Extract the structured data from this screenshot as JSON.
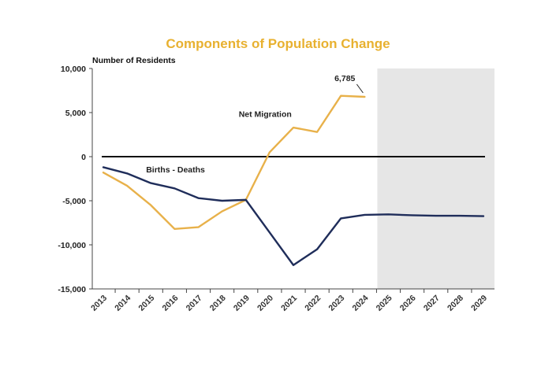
{
  "chart_data": {
    "type": "line",
    "title": "Components of Population Change",
    "ylabel": "Number of Residents",
    "xlabel": "",
    "x": [
      2013,
      2014,
      2015,
      2016,
      2017,
      2018,
      2019,
      2020,
      2021,
      2022,
      2023,
      2024,
      2025,
      2026,
      2027,
      2028,
      2029
    ],
    "x_tick_labels": [
      "2013",
      "2014",
      "2015",
      "2016",
      "2017",
      "2018",
      "2019",
      "2020",
      "2021",
      "2022",
      "2023",
      "2024",
      "2025",
      "2026",
      "2027",
      "2028",
      "2029"
    ],
    "ylim": [
      -15000,
      10000
    ],
    "y_ticks": [
      10000,
      5000,
      0,
      -5000,
      -10000,
      -15000
    ],
    "y_tick_labels": [
      "10,000",
      "5,000",
      "0",
      "-5,000",
      "-10,000",
      "-15,000"
    ],
    "projection_shading_from": 2024.5,
    "series": [
      {
        "name": "Net Migration",
        "color": "#e8b14a",
        "x": [
          2013,
          2014,
          2015,
          2016,
          2017,
          2018,
          2019,
          2020,
          2021,
          2022,
          2023,
          2024
        ],
        "values": [
          -1800,
          -3300,
          -5500,
          -8200,
          -8000,
          -6200,
          -4900,
          500,
          3300,
          2800,
          6900,
          6785
        ]
      },
      {
        "name": "Births - Deaths",
        "color": "#1f2d5a",
        "x": [
          2013,
          2014,
          2015,
          2016,
          2017,
          2018,
          2019,
          2020,
          2021,
          2022,
          2023,
          2024,
          2025,
          2026,
          2027,
          2028,
          2029
        ],
        "values": [
          -1200,
          -1900,
          -3000,
          -3600,
          -4700,
          -5000,
          -4900,
          -8600,
          -12300,
          -10500,
          -7000,
          -6600,
          -6550,
          -6650,
          -6700,
          -6700,
          -6750
        ]
      }
    ],
    "annotations": [
      {
        "text": "6,785"
      },
      {
        "text": "Net Migration"
      },
      {
        "text": "Births - Deaths"
      }
    ],
    "grid": false,
    "legend": "none"
  }
}
